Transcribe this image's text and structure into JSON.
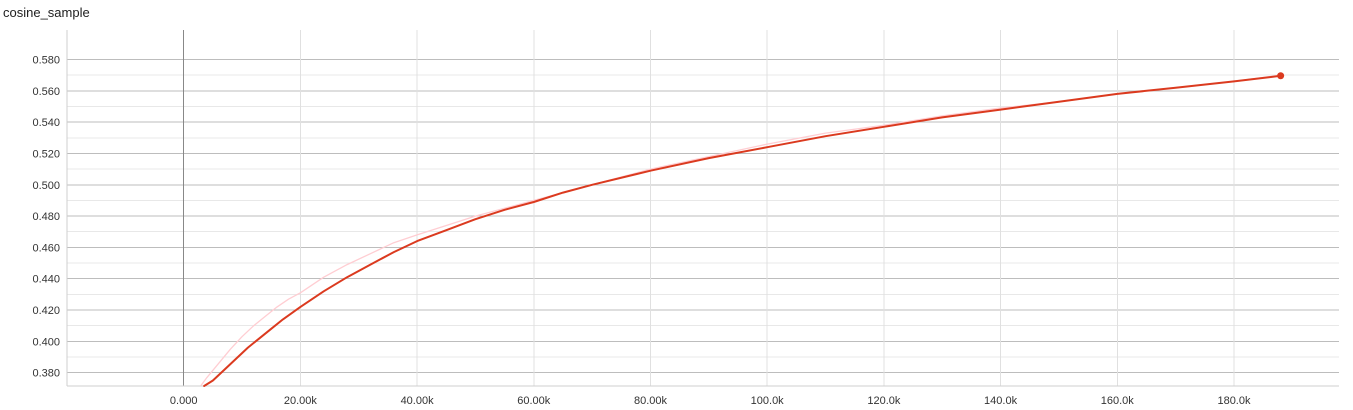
{
  "panel": {
    "title": "cosine_sample"
  },
  "chart_data": {
    "type": "line",
    "title": "cosine_sample",
    "xlabel": "",
    "ylabel": "",
    "xlim": [
      -20000,
      198000
    ],
    "ylim": [
      0.3715,
      0.595
    ],
    "grid": true,
    "x_ticks": [
      0,
      20000,
      40000,
      60000,
      80000,
      100000,
      120000,
      140000,
      160000,
      180000
    ],
    "x_tick_labels": [
      "0.000",
      "20.00k",
      "40.00k",
      "60.00k",
      "80.00k",
      "100.0k",
      "120.0k",
      "140.0k",
      "160.0k",
      "180.0k"
    ],
    "y_ticks": [
      0.38,
      0.4,
      0.42,
      0.44,
      0.46,
      0.48,
      0.5,
      0.52,
      0.54,
      0.56,
      0.58
    ],
    "y_tick_labels": [
      "0.380",
      "0.400",
      "0.420",
      "0.440",
      "0.460",
      "0.480",
      "0.500",
      "0.520",
      "0.540",
      "0.560",
      "0.580"
    ],
    "series": [
      {
        "color": "#ffcdd2",
        "x": [
          3000,
          4000,
          6000,
          8000,
          10000,
          12000,
          14000,
          16000,
          18000,
          20000,
          24000,
          28000,
          32000,
          36000,
          40000,
          45000,
          50000,
          55000,
          60000,
          65000,
          70000,
          80000,
          90000,
          100000,
          110000,
          120000,
          130000,
          140000,
          150000,
          160000,
          170000,
          180000,
          188000
        ],
        "y": [
          0.372,
          0.377,
          0.386,
          0.395,
          0.403,
          0.41,
          0.416,
          0.422,
          0.427,
          0.431,
          0.441,
          0.449,
          0.456,
          0.463,
          0.468,
          0.474,
          0.48,
          0.485,
          0.49,
          0.495,
          0.5,
          0.51,
          0.518,
          0.526,
          0.533,
          0.538,
          0.544,
          0.549,
          0.553,
          0.558,
          0.562,
          0.566,
          0.57
        ]
      },
      {
        "color": "#db3a1f",
        "x": [
          3500,
          5000,
          7000,
          9000,
          11000,
          13000,
          15000,
          17000,
          20000,
          24000,
          28000,
          32000,
          36000,
          40000,
          45000,
          50000,
          55000,
          60000,
          65000,
          70000,
          80000,
          90000,
          100000,
          110000,
          120000,
          130000,
          140000,
          150000,
          160000,
          170000,
          180000,
          188000
        ],
        "y": [
          0.3715,
          0.375,
          0.382,
          0.389,
          0.396,
          0.402,
          0.408,
          0.414,
          0.422,
          0.432,
          0.441,
          0.449,
          0.457,
          0.464,
          0.471,
          0.478,
          0.484,
          0.489,
          0.495,
          0.5,
          0.509,
          0.517,
          0.524,
          0.531,
          0.537,
          0.543,
          0.548,
          0.553,
          0.558,
          0.562,
          0.566,
          0.5696
        ]
      }
    ]
  }
}
